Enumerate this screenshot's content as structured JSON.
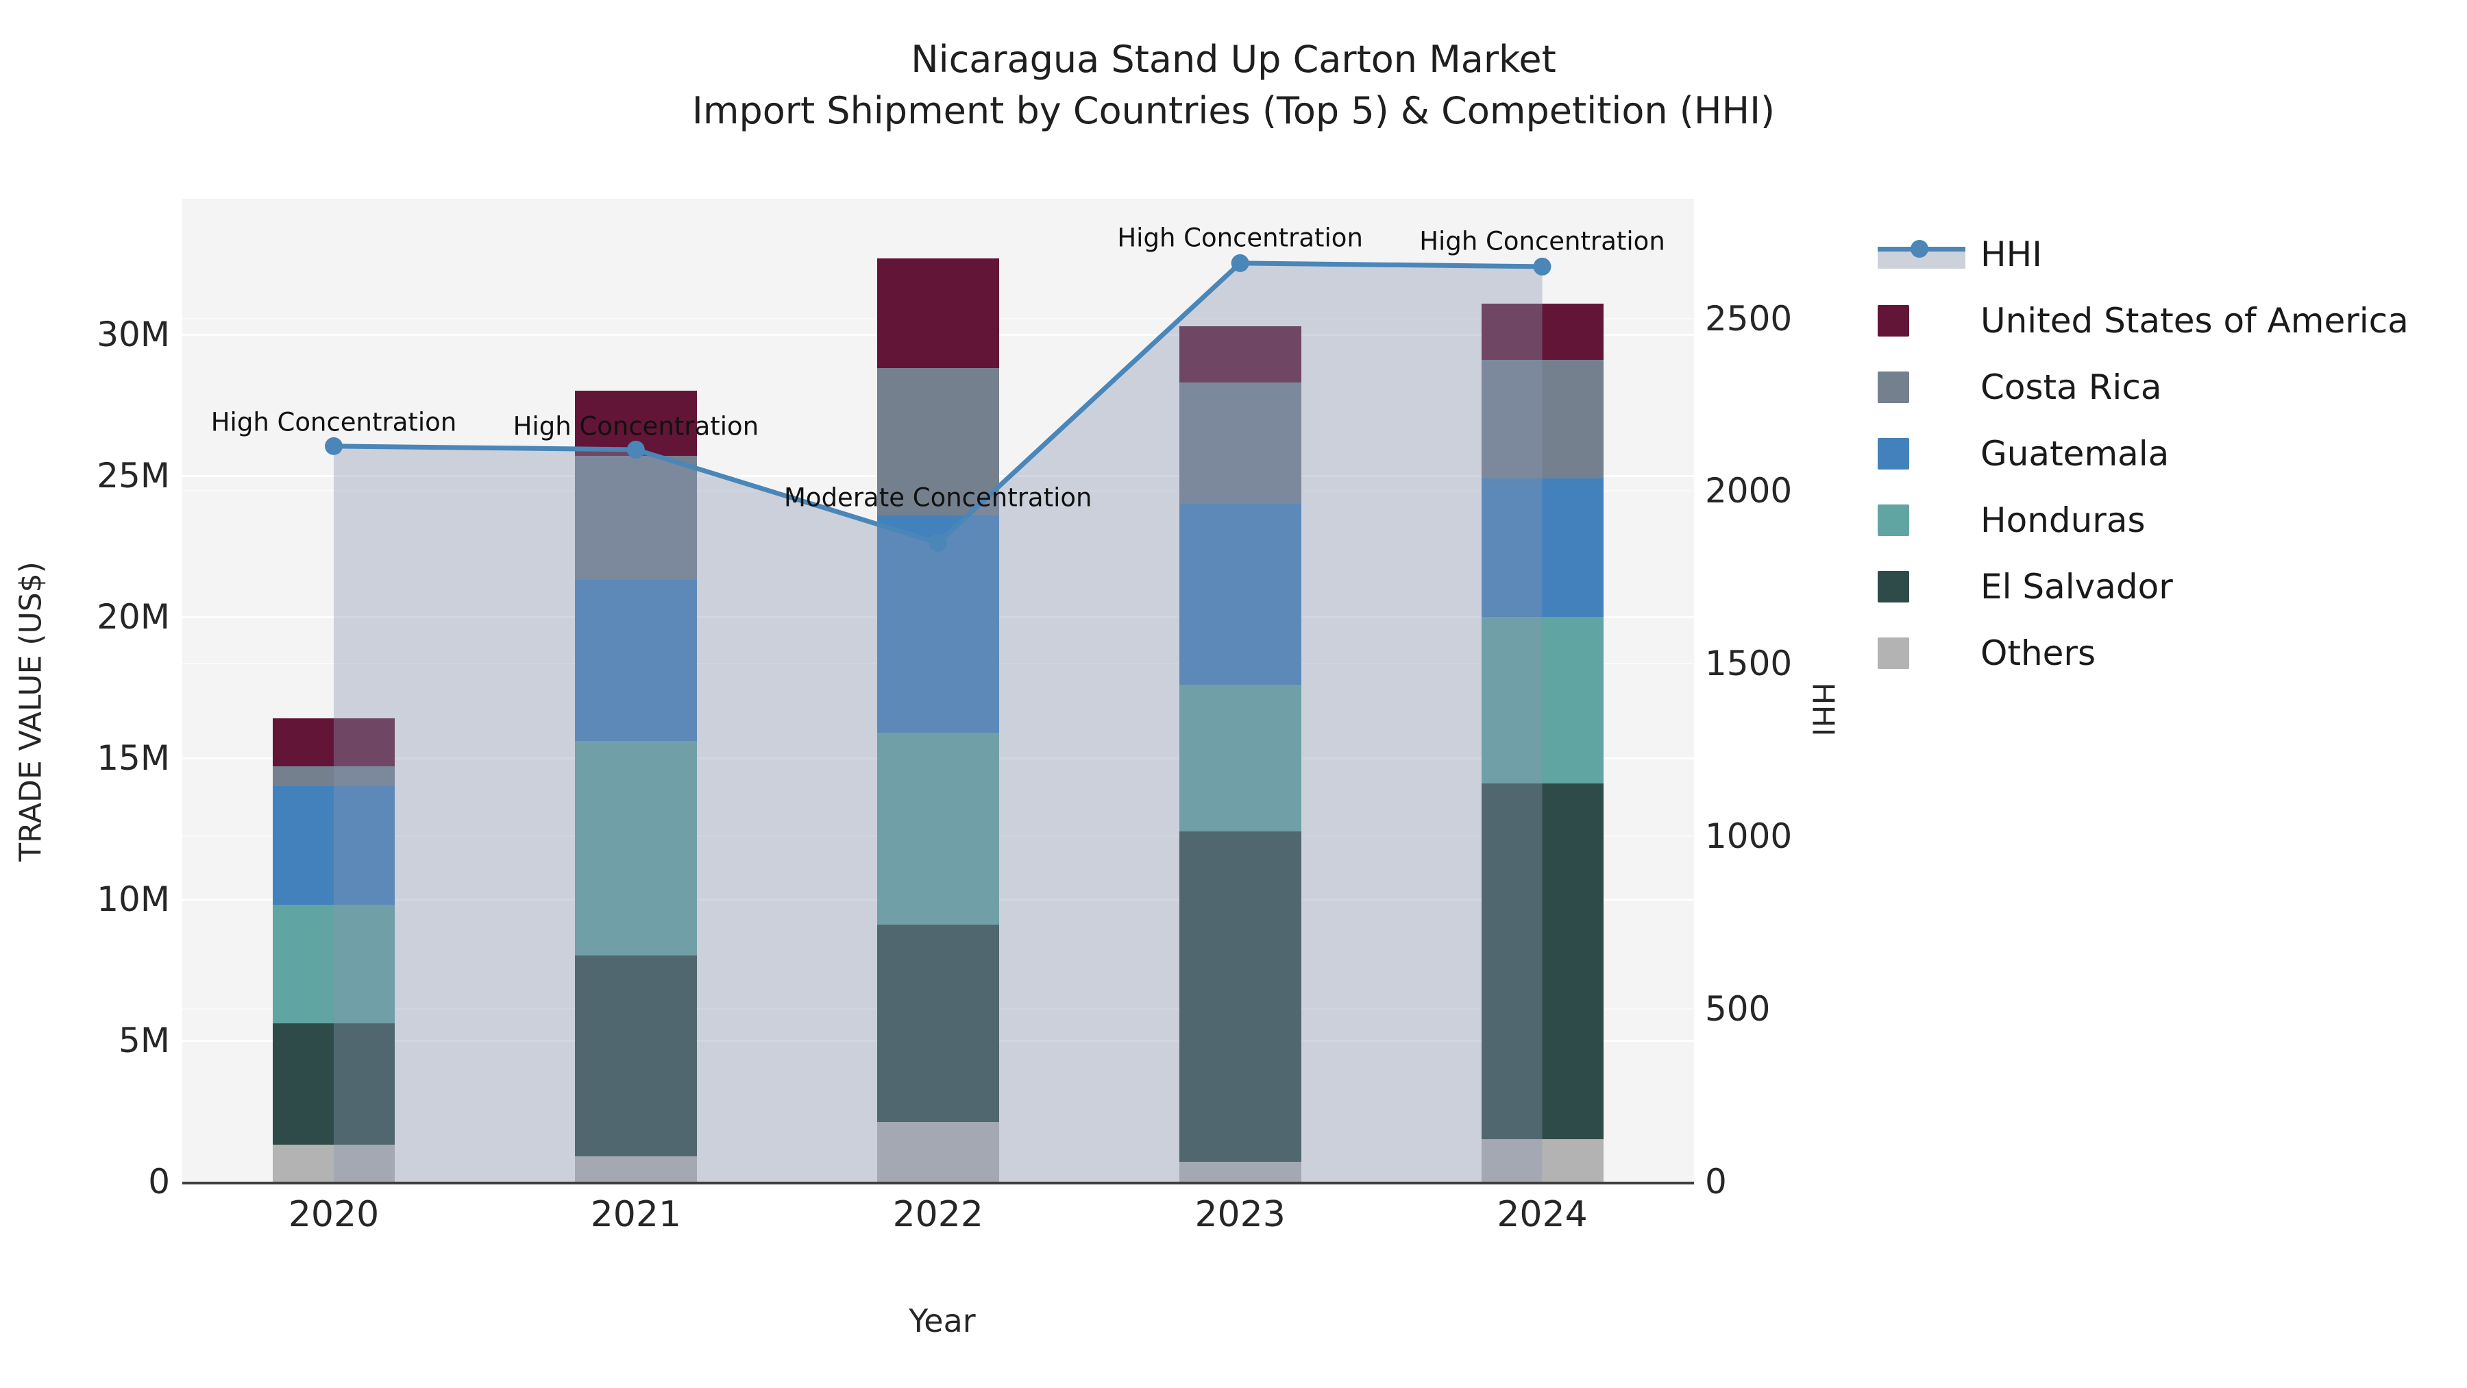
{
  "title": {
    "line1": "Nicaragua Stand Up Carton Market",
    "line2": "Import Shipment by Countries (Top 5) & Competition (HHI)"
  },
  "axes": {
    "y_left": {
      "label": "TRADE VALUE (US$)",
      "ticks": [
        "0",
        "5M",
        "10M",
        "15M",
        "20M",
        "25M",
        "30M"
      ],
      "tick_values_m": [
        0,
        5,
        10,
        15,
        20,
        25,
        30
      ]
    },
    "y_right": {
      "label": "HHI",
      "ticks": [
        "0",
        "500",
        "1000",
        "1500",
        "2000",
        "2500"
      ],
      "tick_values": [
        0,
        500,
        1000,
        1500,
        2000,
        2500
      ]
    },
    "x": {
      "label": "Year"
    }
  },
  "legend": {
    "entries": [
      {
        "key": "hhi",
        "label": "HHI",
        "type": "line",
        "color": "#4a86b8"
      },
      {
        "key": "usa",
        "label": "United States of America",
        "type": "box",
        "color": "#621537"
      },
      {
        "key": "costa_rica",
        "label": "Costa Rica",
        "type": "box",
        "color": "#75808F"
      },
      {
        "key": "guatemala",
        "label": "Guatemala",
        "type": "box",
        "color": "#4381BD"
      },
      {
        "key": "honduras",
        "label": "Honduras",
        "type": "box",
        "color": "#61A5A2"
      },
      {
        "key": "el_salvador",
        "label": "El Salvador",
        "type": "box",
        "color": "#2E4B4A"
      },
      {
        "key": "others",
        "label": "Others",
        "type": "box",
        "color": "#B3B3B4"
      }
    ]
  },
  "chart_data": {
    "type": "bar",
    "subtype": "stacked-bars-with-line-overlay",
    "categories": [
      "2020",
      "2021",
      "2022",
      "2023",
      "2024"
    ],
    "value_unit": "million US$",
    "stack_order_bottom_to_top": [
      "Others",
      "El Salvador",
      "Honduras",
      "Guatemala",
      "Costa Rica",
      "United States of America"
    ],
    "series": [
      {
        "name": "Others",
        "color": "#B3B3B4",
        "values": [
          1.3,
          0.9,
          2.1,
          0.7,
          1.5
        ]
      },
      {
        "name": "El Salvador",
        "color": "#2E4B4A",
        "values": [
          4.3,
          7.1,
          7.0,
          11.7,
          12.6
        ]
      },
      {
        "name": "Honduras",
        "color": "#61A5A2",
        "values": [
          4.2,
          7.6,
          6.8,
          5.2,
          5.9
        ]
      },
      {
        "name": "Guatemala",
        "color": "#4381BD",
        "values": [
          4.2,
          5.7,
          7.7,
          6.4,
          4.9
        ]
      },
      {
        "name": "Costa Rica",
        "color": "#75808F",
        "values": [
          0.7,
          4.4,
          5.2,
          4.3,
          4.2
        ]
      },
      {
        "name": "United States of America",
        "color": "#621537",
        "values": [
          1.7,
          2.3,
          3.9,
          2.0,
          2.0
        ]
      }
    ],
    "bar_totals": [
      16.4,
      28.0,
      32.7,
      30.3,
      31.1
    ],
    "line_series": {
      "name": "HHI",
      "axis": "right",
      "color": "#4a86b8",
      "area_fill": "#8997B1",
      "area_opacity": 0.38,
      "values": [
        2130,
        2120,
        1850,
        2660,
        2650
      ]
    },
    "annotations": [
      {
        "category": "2020",
        "text": "High Concentration",
        "offset_y": -35
      },
      {
        "category": "2021",
        "text": "High Concentration",
        "offset_y": -34
      },
      {
        "category": "2022",
        "text": "Moderate Concentration",
        "offset_y": -66
      },
      {
        "category": "2023",
        "text": "High Concentration",
        "offset_y": -37
      },
      {
        "category": "2024",
        "text": "High Concentration",
        "offset_y": -37
      }
    ],
    "xlabel": "Year",
    "ylabel_left": "TRADE VALUE (US$)",
    "ylabel_right": "HHI",
    "ylim_left_m": [
      0,
      34.8
    ],
    "ylim_right": [
      0,
      2847
    ],
    "grid": true,
    "legend_position": "right-outside"
  }
}
